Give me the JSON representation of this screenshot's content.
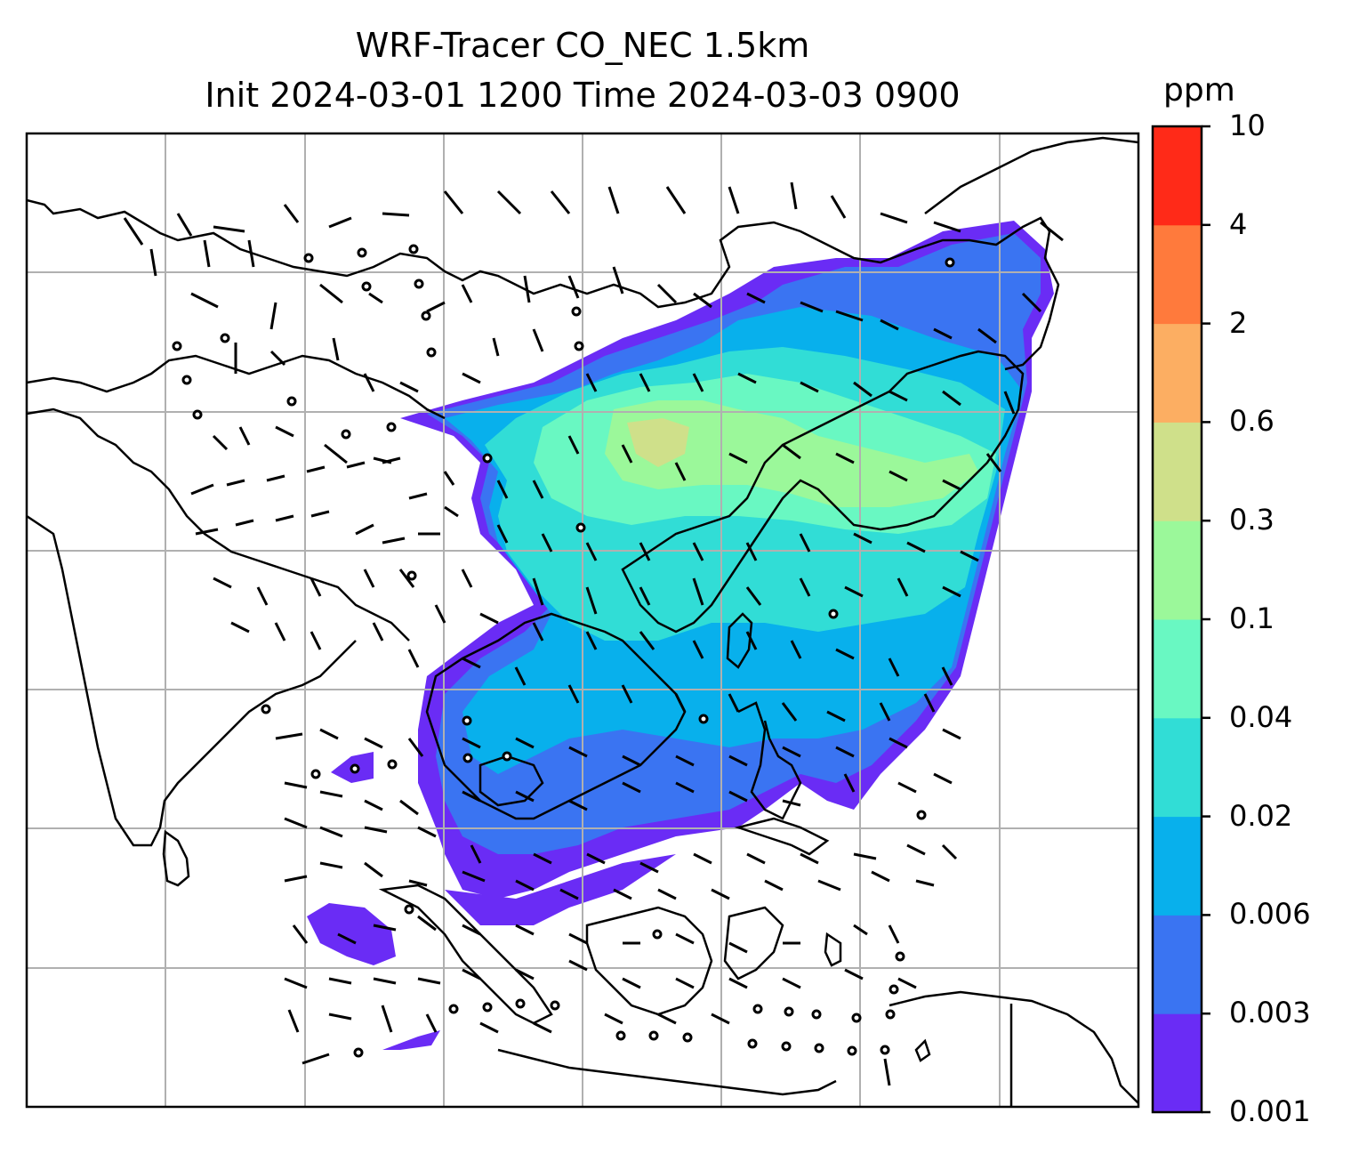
{
  "title_line1": "WRF-Tracer CO_NEC 1.5km",
  "title_line2": "Init 2024-03-01 1200 Time 2024-03-03 0900",
  "colorbar": {
    "unit": "ppm",
    "ticks": [
      "10",
      "4",
      "2",
      "0.6",
      "0.3",
      "0.1",
      "0.04",
      "0.02",
      "0.006",
      "0.003",
      "0.001"
    ],
    "colors_bottom_to_top": [
      "#6a2cf5",
      "#3a74f2",
      "#08b0ec",
      "#31ddd6",
      "#69f8c2",
      "#9bf89a",
      "#cfe08a",
      "#fcae62",
      "#ff7a3c",
      "#ff2a18"
    ]
  },
  "map": {
    "gridlines": true,
    "coastline_color": "#000000",
    "grid_color": "#b0b0b0"
  }
}
